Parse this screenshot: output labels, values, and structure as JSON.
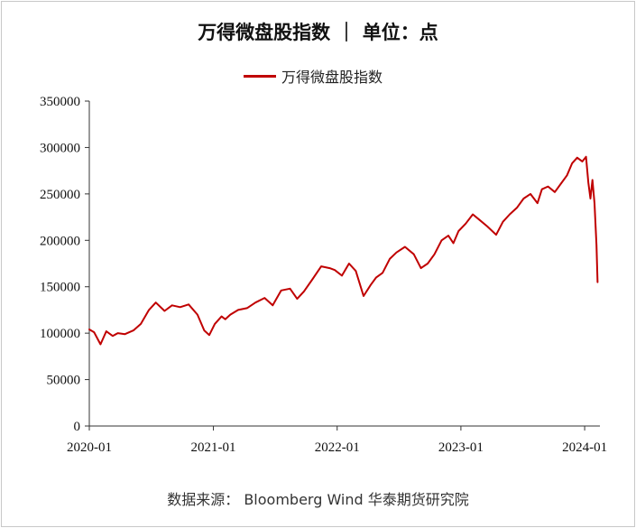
{
  "title": "万得微盘股指数 ｜ 单位：点",
  "source": "数据来源：  Bloomberg Wind  华泰期货研究院",
  "chart_data": {
    "type": "line",
    "title": "万得微盘股指数 ｜ 单位：点",
    "xlabel": "",
    "ylabel": "",
    "ylim": [
      0,
      350000
    ],
    "y_ticks": [
      0,
      50000,
      100000,
      150000,
      200000,
      250000,
      300000,
      350000
    ],
    "x_ticks": [
      "2020-01",
      "2021-01",
      "2022-01",
      "2023-01",
      "2024-01"
    ],
    "xlim": [
      "2020-01-01",
      "2024-02-15"
    ],
    "grid": false,
    "legend_position": "top-center",
    "series": [
      {
        "name": "万得微盘股指数",
        "color": "#c00000",
        "x": [
          "2020-01-01",
          "2020-01-15",
          "2020-02-03",
          "2020-02-20",
          "2020-03-10",
          "2020-03-25",
          "2020-04-15",
          "2020-05-10",
          "2020-06-01",
          "2020-06-25",
          "2020-07-15",
          "2020-08-10",
          "2020-09-01",
          "2020-09-25",
          "2020-10-20",
          "2020-11-15",
          "2020-12-05",
          "2020-12-20",
          "2021-01-05",
          "2021-01-25",
          "2021-02-05",
          "2021-02-20",
          "2021-03-15",
          "2021-04-10",
          "2021-05-05",
          "2021-06-01",
          "2021-06-25",
          "2021-07-20",
          "2021-08-15",
          "2021-09-05",
          "2021-09-25",
          "2021-10-20",
          "2021-11-15",
          "2021-12-10",
          "2021-12-25",
          "2022-01-15",
          "2022-02-05",
          "2022-02-25",
          "2022-03-20",
          "2022-04-10",
          "2022-04-26",
          "2022-05-15",
          "2022-06-05",
          "2022-06-25",
          "2022-07-20",
          "2022-08-15",
          "2022-09-05",
          "2022-09-25",
          "2022-10-15",
          "2022-11-05",
          "2022-11-25",
          "2022-12-10",
          "2022-12-25",
          "2023-01-15",
          "2023-02-05",
          "2023-02-25",
          "2023-03-20",
          "2023-04-15",
          "2023-05-05",
          "2023-05-25",
          "2023-06-15",
          "2023-07-05",
          "2023-07-25",
          "2023-08-15",
          "2023-08-28",
          "2023-09-15",
          "2023-10-05",
          "2023-10-25",
          "2023-11-10",
          "2023-11-25",
          "2023-12-10",
          "2023-12-25",
          "2024-01-05",
          "2024-01-12",
          "2024-01-18",
          "2024-01-24",
          "2024-01-30",
          "2024-02-05",
          "2024-02-08"
        ],
        "values": [
          104000,
          101000,
          88000,
          102000,
          97000,
          100000,
          99000,
          103000,
          110000,
          125000,
          133000,
          124000,
          130000,
          128000,
          131000,
          120000,
          103000,
          98000,
          110000,
          118000,
          115000,
          120000,
          125000,
          127000,
          133000,
          138000,
          130000,
          146000,
          148000,
          137000,
          145000,
          158000,
          172000,
          170000,
          168000,
          162000,
          175000,
          167000,
          140000,
          152000,
          160000,
          165000,
          180000,
          187000,
          193000,
          185000,
          170000,
          175000,
          185000,
          200000,
          205000,
          197000,
          210000,
          218000,
          228000,
          222000,
          215000,
          206000,
          220000,
          228000,
          235000,
          245000,
          250000,
          240000,
          255000,
          258000,
          252000,
          262000,
          270000,
          283000,
          289000,
          285000,
          290000,
          262000,
          245000,
          265000,
          240000,
          195000,
          155000
        ]
      }
    ]
  }
}
